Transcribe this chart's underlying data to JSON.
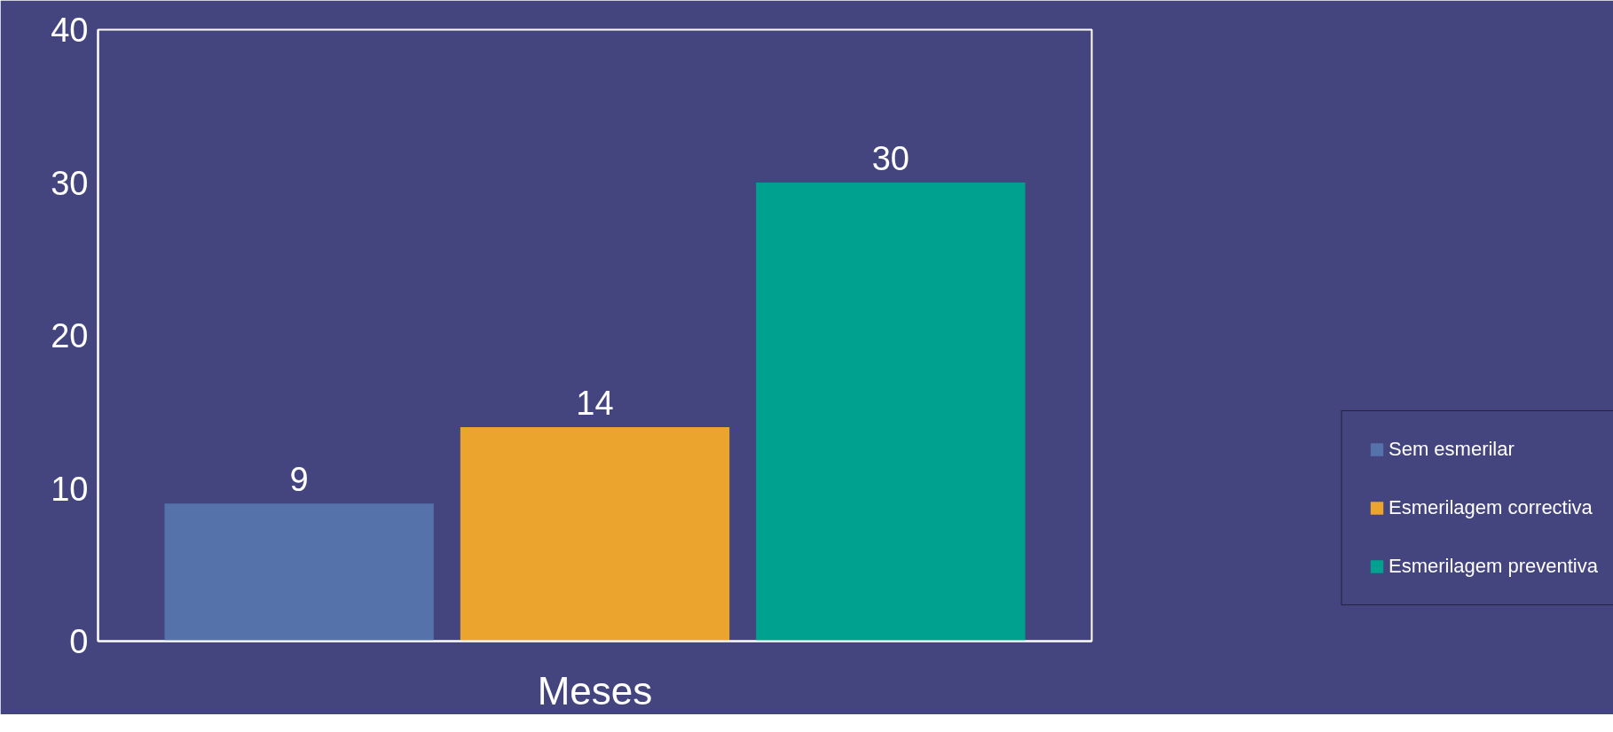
{
  "chart_data": {
    "type": "bar",
    "categories": [
      null,
      null,
      null
    ],
    "series": [
      {
        "name": "Sem esmerilar",
        "color": "#5573aa",
        "values": [
          9,
          null,
          null
        ]
      },
      {
        "name": "Esmerilagem correctiva",
        "color": "#eba42e",
        "values": [
          null,
          14,
          null
        ]
      },
      {
        "name": "Esmerilagem preventiva",
        "color": "#00a28f",
        "values": [
          null,
          null,
          30
        ]
      }
    ],
    "xlabel": "Meses",
    "ylim": [
      0,
      40
    ],
    "yticks": [
      0,
      10,
      20,
      30,
      40
    ],
    "grid": false,
    "legend": "right",
    "data_labels": true
  }
}
